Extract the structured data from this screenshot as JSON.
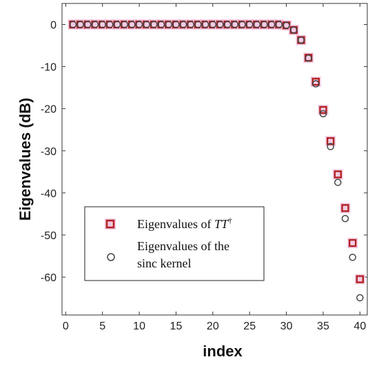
{
  "chart_data": {
    "type": "scatter",
    "xlabel": "index",
    "ylabel": "Eigenvalues (dB)",
    "xlim": [
      -0.5,
      41
    ],
    "ylim": [
      -69,
      5
    ],
    "xticks": [
      0,
      5,
      10,
      15,
      20,
      25,
      30,
      35,
      40
    ],
    "yticks": [
      0,
      -10,
      -20,
      -30,
      -40,
      -50,
      -60
    ],
    "grid": false,
    "legend_position": "bottom-left",
    "colors": {
      "tt_series": "#b22222",
      "tt_fill": "#f1c6e2",
      "sinc_series": "#444444"
    },
    "series": [
      {
        "name": "Eigenvalues of TT†",
        "legend_label": {
          "prefix": "Eigenvalues of ",
          "math": "TT",
          "sup": "†"
        },
        "marker": "square",
        "x": [
          1,
          2,
          3,
          4,
          5,
          6,
          7,
          8,
          9,
          10,
          11,
          12,
          13,
          14,
          15,
          16,
          17,
          18,
          19,
          20,
          21,
          22,
          23,
          24,
          25,
          26,
          27,
          28,
          29,
          30,
          31,
          32,
          33,
          34,
          35,
          36,
          37,
          38,
          39,
          40
        ],
        "y": [
          0,
          0,
          0,
          0,
          0,
          0,
          0,
          0,
          0,
          0,
          0,
          0,
          0,
          0,
          0,
          0,
          0,
          0,
          0,
          0,
          0,
          0,
          0,
          0,
          0,
          0,
          0,
          0,
          0,
          -0.2,
          -1.3,
          -3.7,
          -7.9,
          -13.6,
          -20.3,
          -27.7,
          -35.6,
          -43.6,
          -51.9,
          -60.5
        ]
      },
      {
        "name": "Eigenvalues of the sinc kernel",
        "legend_label_lines": [
          "Eigenvalues of the",
          "sinc kernel"
        ],
        "marker": "circle",
        "x": [
          1,
          2,
          3,
          4,
          5,
          6,
          7,
          8,
          9,
          10,
          11,
          12,
          13,
          14,
          15,
          16,
          17,
          18,
          19,
          20,
          21,
          22,
          23,
          24,
          25,
          26,
          27,
          28,
          29,
          30,
          31,
          32,
          33,
          34,
          35,
          36,
          37,
          38,
          39,
          40
        ],
        "y": [
          0,
          0,
          0,
          0,
          0,
          0,
          0,
          0,
          0,
          0,
          0,
          0,
          0,
          0,
          0,
          0,
          0,
          0,
          0,
          0,
          0,
          0,
          0,
          0,
          0,
          0,
          0,
          0,
          0,
          -0.2,
          -1.3,
          -3.7,
          -8.0,
          -14.1,
          -21.2,
          -29.0,
          -37.5,
          -46.1,
          -55.3,
          -64.9
        ]
      }
    ]
  }
}
